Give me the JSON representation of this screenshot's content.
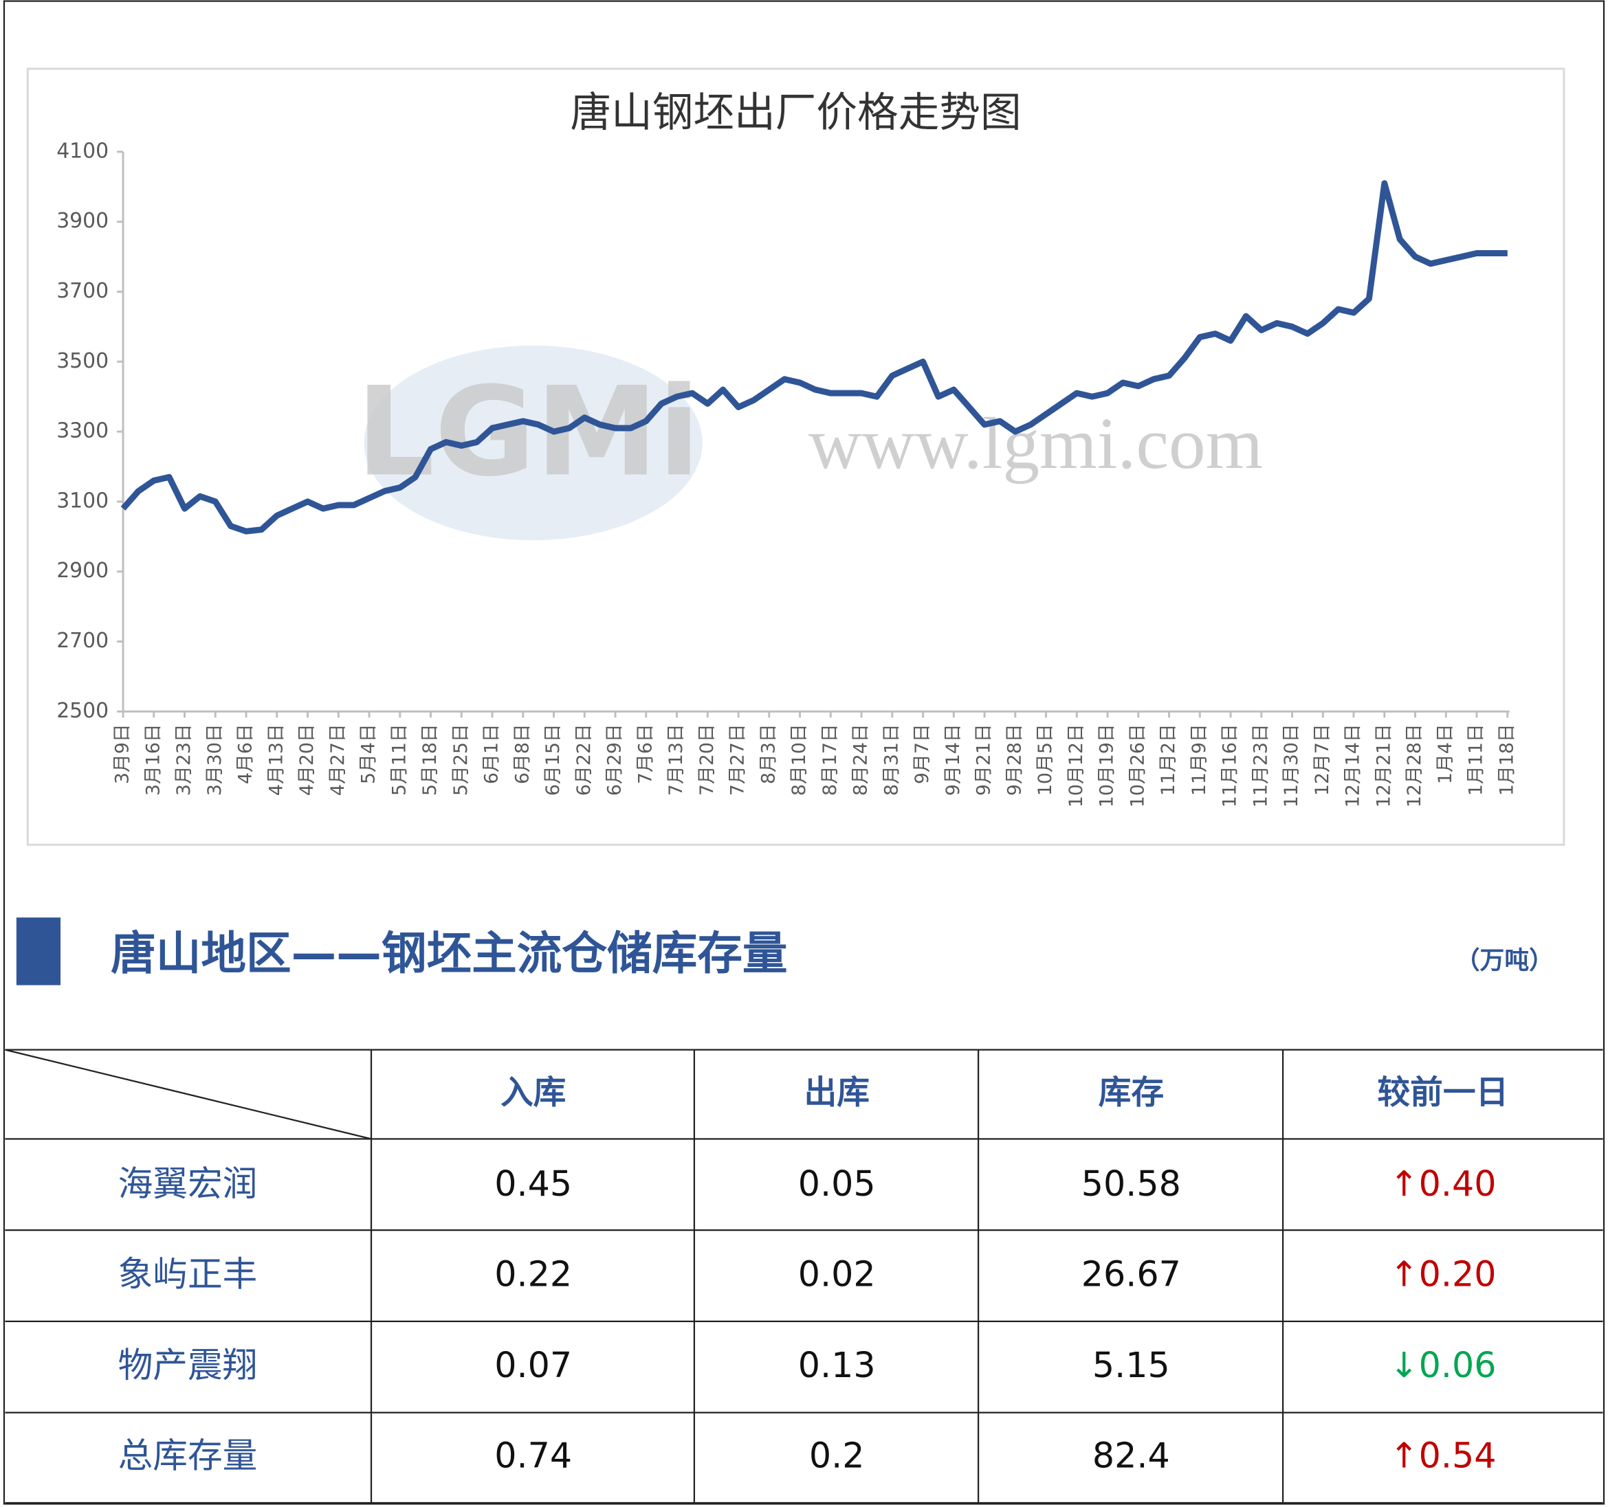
{
  "chart_data": {
    "type": "line",
    "title": "唐山钢坯出厂价格走势图",
    "watermark": "www.lgmi.com",
    "logo": "LGMi",
    "categories": [
      "3月9日",
      null,
      "3月16日",
      null,
      "3月23日",
      null,
      "3月30日",
      null,
      "4月6日",
      null,
      "4月13日",
      null,
      "4月20日",
      null,
      "4月27日",
      null,
      "5月4日",
      null,
      "5月11日",
      null,
      "5月18日",
      null,
      "5月25日",
      null,
      "6月1日",
      null,
      "6月8日",
      null,
      "6月15日",
      null,
      "6月22日",
      null,
      "6月29日",
      null,
      "7月6日",
      null,
      "7月13日",
      null,
      "7月20日",
      null,
      "7月27日",
      null,
      "8月3日",
      null,
      "8月10日",
      null,
      "8月17日",
      null,
      "8月24日",
      null,
      "8月31日",
      null,
      "9月7日",
      null,
      "9月14日",
      null,
      "9月21日",
      null,
      "9月28日",
      null,
      "10月5日",
      null,
      "10月12日",
      null,
      "10月19日",
      null,
      "10月26日",
      null,
      "11月2日",
      null,
      "11月9日",
      null,
      "11月16日",
      null,
      "11月23日",
      null,
      "11月30日",
      null,
      "12月7日",
      null,
      "12月14日",
      null,
      "12月21日",
      null,
      "12月28日",
      null,
      "1月4日",
      null,
      "1月11日",
      null,
      "1月18日"
    ],
    "values": [
      3080,
      3130,
      3160,
      3170,
      3080,
      3115,
      3100,
      3030,
      3015,
      3020,
      3060,
      3080,
      3100,
      3080,
      3090,
      3090,
      3110,
      3130,
      3140,
      3170,
      3250,
      3270,
      3260,
      3270,
      3310,
      3320,
      3330,
      3320,
      3300,
      3310,
      3340,
      3320,
      3310,
      3310,
      3330,
      3380,
      3400,
      3410,
      3380,
      3420,
      3370,
      3390,
      3420,
      3450,
      3440,
      3420,
      3410,
      3410,
      3410,
      3400,
      3460,
      3480,
      3500,
      3400,
      3420,
      3370,
      3320,
      3330,
      3300,
      3320,
      3350,
      3380,
      3410,
      3400,
      3410,
      3440,
      3430,
      3450,
      3460,
      3510,
      3570,
      3580,
      3560,
      3630,
      3590,
      3610,
      3600,
      3580,
      3610,
      3650,
      3640,
      3680,
      4010,
      3850,
      3800,
      3780,
      3790,
      3800,
      3810,
      3810,
      3810
    ],
    "color": "#2f5597",
    "ylim": [
      2500,
      4100
    ],
    "yticks": [
      2500,
      2700,
      2900,
      3100,
      3300,
      3500,
      3700,
      3900,
      4100
    ]
  },
  "section": {
    "title": "唐山地区——钢坯主流仓储库存量",
    "unit": "（万吨）"
  },
  "table": {
    "header": [
      "入库",
      "出库",
      "库存",
      "较前一日"
    ],
    "rows": [
      [
        "海翼宏润",
        "0.45",
        "0.05",
        "50.58",
        "↑0.40"
      ],
      [
        "象屿正丰",
        "0.22",
        "0.02",
        "26.67",
        "↑0.20"
      ],
      [
        "物产震翔",
        "0.07",
        "0.13",
        "5.15",
        "↓0.06"
      ],
      [
        "总库存量",
        "0.74",
        "0.2",
        "82.4",
        "↑0.54"
      ]
    ]
  }
}
